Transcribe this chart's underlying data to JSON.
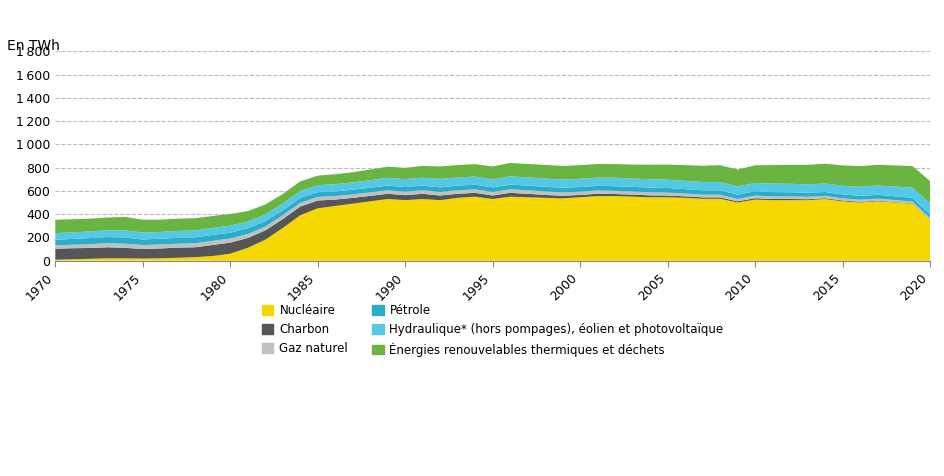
{
  "years": [
    1970,
    1971,
    1972,
    1973,
    1974,
    1975,
    1976,
    1977,
    1978,
    1979,
    1980,
    1981,
    1982,
    1983,
    1984,
    1985,
    1986,
    1987,
    1988,
    1989,
    1990,
    1991,
    1992,
    1993,
    1994,
    1995,
    1996,
    1997,
    1998,
    1999,
    2000,
    2001,
    2002,
    2003,
    2004,
    2005,
    2006,
    2007,
    2008,
    2009,
    2010,
    2011,
    2012,
    2013,
    2014,
    2015,
    2016,
    2017,
    2018,
    2019,
    2020
  ],
  "nucleaire": [
    8,
    12,
    16,
    20,
    20,
    18,
    20,
    25,
    30,
    40,
    60,
    110,
    180,
    280,
    390,
    450,
    470,
    490,
    510,
    530,
    520,
    530,
    520,
    540,
    550,
    530,
    550,
    545,
    540,
    535,
    545,
    555,
    555,
    550,
    545,
    545,
    540,
    532,
    532,
    500,
    525,
    520,
    520,
    520,
    530,
    510,
    500,
    510,
    500,
    490,
    350
  ],
  "charbon": [
    95,
    95,
    93,
    95,
    90,
    83,
    85,
    87,
    85,
    95,
    95,
    85,
    80,
    77,
    75,
    67,
    55,
    50,
    47,
    45,
    43,
    45,
    40,
    35,
    33,
    30,
    33,
    30,
    25,
    23,
    20,
    20,
    18,
    18,
    16,
    15,
    13,
    12,
    12,
    10,
    12,
    10,
    10,
    8,
    7,
    7,
    6,
    5,
    4,
    3,
    2
  ],
  "gaz_naturel": [
    28,
    30,
    33,
    36,
    36,
    33,
    34,
    34,
    35,
    36,
    36,
    34,
    33,
    33,
    32,
    31,
    30,
    30,
    30,
    30,
    30,
    30,
    30,
    30,
    30,
    30,
    31,
    30,
    30,
    28,
    28,
    28,
    27,
    27,
    26,
    25,
    24,
    23,
    23,
    21,
    22,
    22,
    22,
    21,
    20,
    19,
    18,
    18,
    17,
    16,
    15
  ],
  "petrole": [
    48,
    50,
    52,
    52,
    52,
    48,
    50,
    50,
    50,
    50,
    50,
    48,
    46,
    43,
    42,
    41,
    40,
    40,
    40,
    40,
    40,
    40,
    40,
    40,
    40,
    40,
    40,
    40,
    40,
    40,
    40,
    40,
    40,
    40,
    40,
    40,
    38,
    38,
    38,
    36,
    38,
    38,
    36,
    36,
    33,
    33,
    33,
    33,
    33,
    31,
    30
  ],
  "hydraulique": [
    58,
    56,
    58,
    58,
    63,
    60,
    58,
    60,
    60,
    60,
    60,
    58,
    58,
    58,
    60,
    60,
    63,
    63,
    65,
    66,
    68,
    68,
    73,
    70,
    70,
    68,
    71,
    71,
    71,
    71,
    71,
    71,
    73,
    71,
    73,
    71,
    71,
    71,
    71,
    71,
    71,
    73,
    73,
    71,
    73,
    75,
    78,
    80,
    83,
    88,
    98
  ],
  "renouvelables": [
    115,
    113,
    110,
    110,
    115,
    110,
    105,
    105,
    105,
    103,
    100,
    91,
    86,
    82,
    82,
    82,
    85,
    87,
    92,
    97,
    97,
    102,
    107,
    107,
    107,
    112,
    115,
    115,
    117,
    117,
    117,
    117,
    117,
    120,
    125,
    130,
    135,
    140,
    145,
    145,
    152,
    158,
    163,
    168,
    170,
    175,
    178,
    178,
    182,
    185,
    190
  ],
  "colors": {
    "nucleaire": "#F5D800",
    "charbon": "#565656",
    "gaz_naturel": "#C0C0C0",
    "petrole": "#2BACC8",
    "hydraulique": "#55C8E8",
    "renouvelables": "#6AB542"
  },
  "legend_labels": {
    "nucleaire": "Nucléaire",
    "charbon": "Charbon",
    "gaz_naturel": "Gaz naturel",
    "petrole": "Pétrole",
    "hydraulique": "Hydraulique* (hors pompages), éolien et photovoltaïque",
    "renouvelables": "Énergies renouvelables thermiques et déchets"
  },
  "ylabel": "En TWh",
  "ylim": [
    0,
    1800
  ],
  "yticks": [
    0,
    200,
    400,
    600,
    800,
    1000,
    1200,
    1400,
    1600,
    1800
  ],
  "xticks": [
    1970,
    1975,
    1980,
    1985,
    1990,
    1995,
    2000,
    2005,
    2010,
    2015,
    2020
  ],
  "background_color": "#FFFFFF",
  "grid_color": "#BBBBBB"
}
